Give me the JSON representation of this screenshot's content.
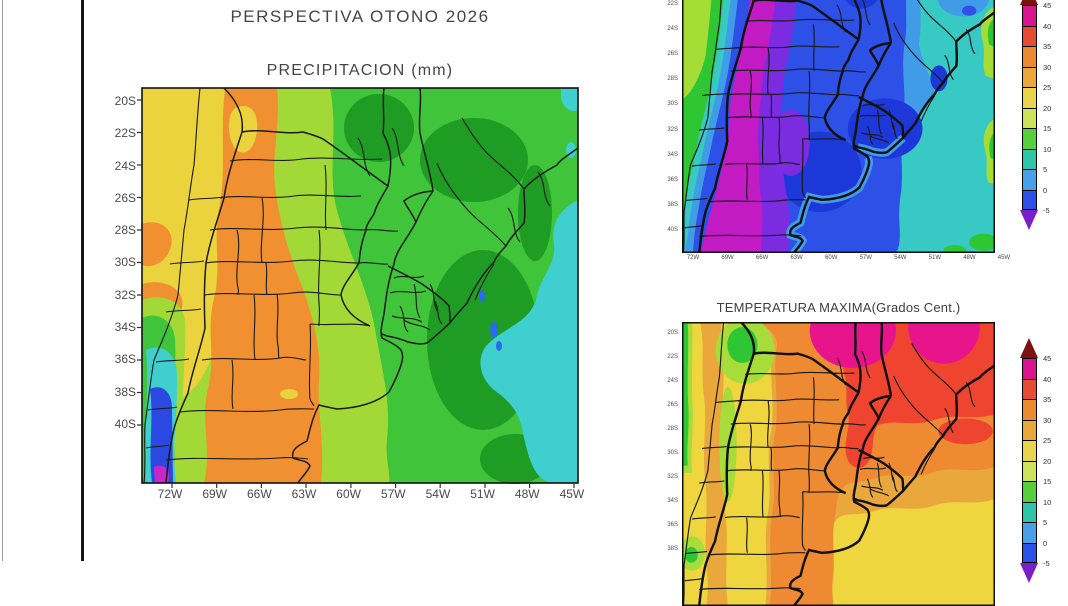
{
  "header": {
    "title": "PERSPECTIVA OTONO 2026"
  },
  "precip_map": {
    "title": "PRECIPITACION (mm)",
    "lat_labels": [
      "20S",
      "22S",
      "24S",
      "26S",
      "28S",
      "30S",
      "32S",
      "34S",
      "36S",
      "38S",
      "40S"
    ],
    "lon_labels": [
      "72W",
      "69W",
      "66W",
      "63W",
      "60W",
      "57W",
      "54W",
      "51W",
      "48W",
      "45W"
    ]
  },
  "tmin_map": {
    "lat_labels": [
      "22S",
      "24S",
      "26S",
      "28S",
      "30S",
      "32S",
      "34S",
      "36S",
      "38S",
      "40S"
    ],
    "lon_labels": [
      "72W",
      "69W",
      "66W",
      "63W",
      "60W",
      "57W",
      "54W",
      "51W",
      "48W",
      "45W"
    ],
    "colorbar_labels": [
      "45",
      "40",
      "35",
      "30",
      "25",
      "20",
      "15",
      "10",
      "5",
      "0",
      "-5"
    ]
  },
  "tmax_map": {
    "title": "TEMPERATURA MAXIMA(Grados Cent.)",
    "lat_labels": [
      "20S",
      "22S",
      "24S",
      "26S",
      "28S",
      "30S",
      "32S",
      "34S",
      "36S",
      "38S"
    ],
    "colorbar_labels": [
      "45",
      "40",
      "35",
      "30",
      "25",
      "20",
      "15",
      "10",
      "5",
      "0",
      "-5"
    ]
  },
  "palette": {
    "colorbar_segments": [
      "#d8158d",
      "#e64b33",
      "#ec8a31",
      "#eaa83c",
      "#e9d44e",
      "#cde35e",
      "#55cf3a",
      "#2fc6a8",
      "#47a0e8",
      "#2d50e6"
    ],
    "overflow_top": "#7b1111",
    "overflow_bottom": "#7a1fc8",
    "precip_colors": [
      "#ead33c",
      "#f09030",
      "#a3d936",
      "#3fc43a",
      "#1e9c24",
      "#3fcfcf",
      "#2b49e2",
      "#c926c9"
    ],
    "temp_cold_colors": [
      "#a5dc35",
      "#2fc634",
      "#38c9c4",
      "#419ce8",
      "#2d50e6",
      "#1c38d8",
      "#7b2be0",
      "#c31bc3"
    ],
    "temp_warm_colors": [
      "#efd63f",
      "#eaa83c",
      "#ee8a31",
      "#ee4430",
      "#e8148c",
      "#a7dc3a",
      "#2fc634"
    ]
  }
}
